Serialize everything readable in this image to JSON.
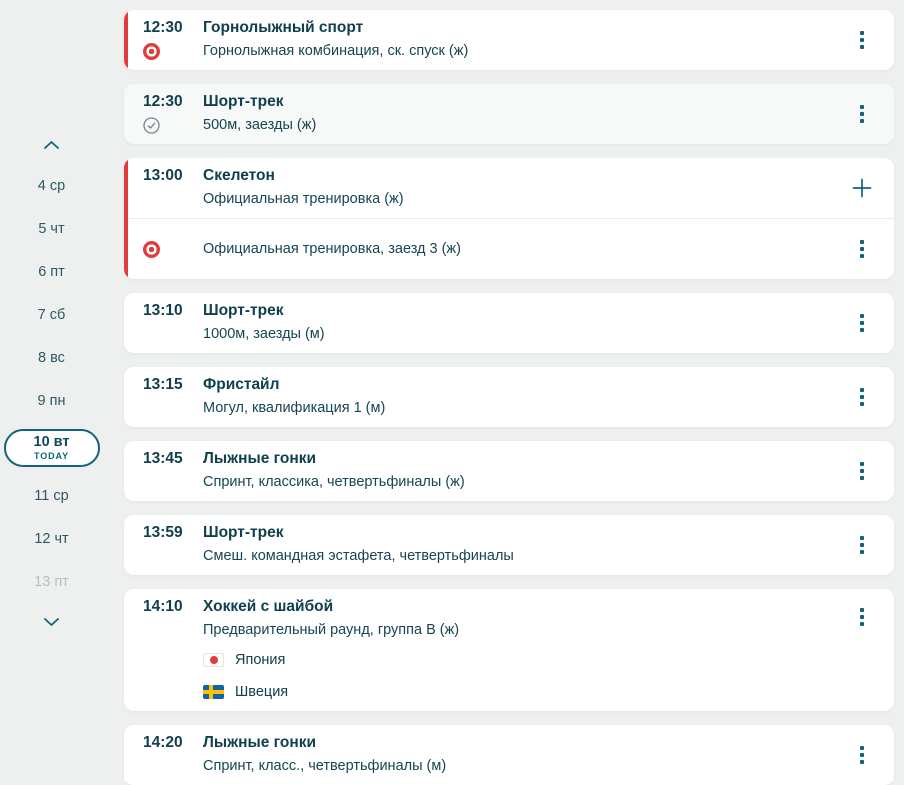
{
  "colors": {
    "page_bg": "#eef0f0",
    "card_bg": "#ffffff",
    "finished_card_bg": "#f7f9f9",
    "text_primary": "#10404e",
    "accent_teal": "#0f6479",
    "live_red": "#e23b3b",
    "done_gray": "#76838a",
    "divider": "#e9ecec",
    "disabled_day": "#b7c1c4",
    "sweden_blue": "#1560ac",
    "flag_cross_yellow": "#fdc300"
  },
  "sidebar": {
    "scroll_up_icon": "chevron-up-icon",
    "scroll_down_icon": "chevron-down-icon",
    "days": [
      {
        "label": "4 ср"
      },
      {
        "label": "5 чт"
      },
      {
        "label": "6 пт"
      },
      {
        "label": "7 сб"
      },
      {
        "label": "8 вс"
      },
      {
        "label": "9 пн"
      },
      {
        "label": "10 вт",
        "badge": "TODAY",
        "today": true
      },
      {
        "label": "11 ср"
      },
      {
        "label": "12 чт"
      },
      {
        "label": "13 пт",
        "disabled": true
      }
    ]
  },
  "events": [
    {
      "time": "12:30",
      "title": "Горнолыжный спорт",
      "subtitle": "Горнолыжная комбинация, ск. спуск (ж)",
      "status_icon": "live-icon",
      "accent": true,
      "action": "menu"
    },
    {
      "time": "12:30",
      "title": "Шорт-трек",
      "subtitle": "500м, заезды (ж)",
      "status_icon": "done-check-icon",
      "finished": true,
      "action": "menu"
    },
    {
      "time": "13:00",
      "title": "Скелетон",
      "subtitle": "Официальная тренировка (ж)",
      "accent": true,
      "action": "add",
      "subrow": {
        "status_icon": "live-icon",
        "text": "Официальная тренировка, заезд 3 (ж)",
        "action": "menu"
      }
    },
    {
      "time": "13:10",
      "title": "Шорт-трек",
      "subtitle": "1000м, заезды (м)",
      "action": "menu"
    },
    {
      "time": "13:15",
      "title": "Фристайл",
      "subtitle": "Могул, квалификация 1 (м)",
      "action": "menu"
    },
    {
      "time": "13:45",
      "title": "Лыжные гонки",
      "subtitle": "Спринт, классика, четвертьфиналы (ж)",
      "action": "menu"
    },
    {
      "time": "13:59",
      "title": "Шорт-трек",
      "subtitle": "Смеш. командная эстафета, четвертьфиналы",
      "action": "menu"
    },
    {
      "time": "14:10",
      "title": "Хоккей с шайбой",
      "subtitle": "Предварительный раунд, группа B (ж)",
      "action": "menu",
      "action_align": "top",
      "teams": [
        {
          "name": "Япония",
          "icon": "flag-japan-icon"
        },
        {
          "name": "Швеция",
          "icon": "flag-sweden-icon"
        }
      ]
    },
    {
      "time": "14:20",
      "title": "Лыжные гонки",
      "subtitle": "Спринт, класс., четвертьфиналы (м)",
      "action": "menu"
    }
  ]
}
